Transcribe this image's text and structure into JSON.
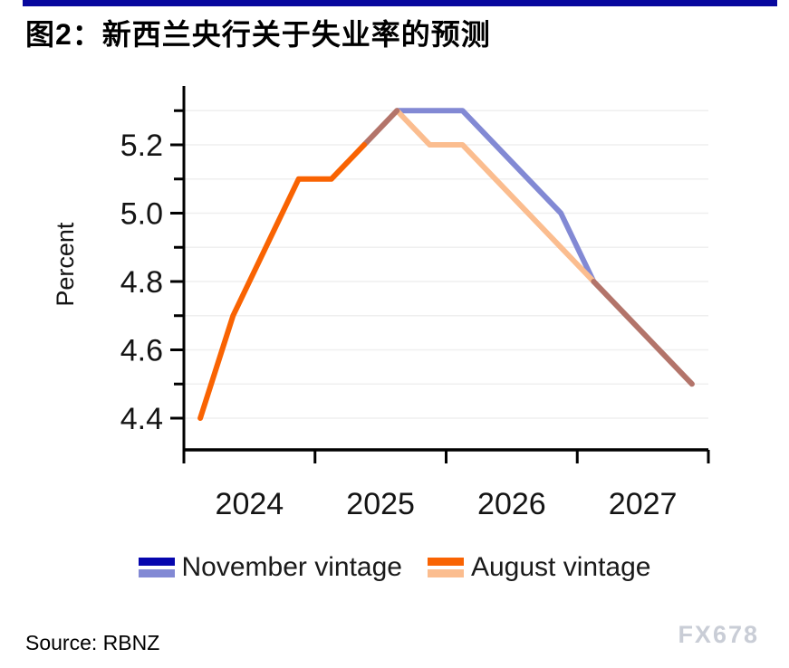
{
  "page": {
    "title": "图2：新西兰央行关于失业率的预测",
    "source": "Source: RBNZ",
    "watermark": "FX678",
    "accent_bar_color": "#08089E"
  },
  "chart_data": {
    "type": "line",
    "title": "图2：新西兰央行关于失业率的预测",
    "xlabel": "",
    "ylabel": "Percent",
    "x_quarters": [
      "2024Q1",
      "2024Q2",
      "2024Q3",
      "2024Q4",
      "2025Q1",
      "2025Q2",
      "2025Q3",
      "2025Q4",
      "2026Q1",
      "2026Q2",
      "2026Q3",
      "2026Q4",
      "2027Q1",
      "2027Q2",
      "2027Q3",
      "2027Q4"
    ],
    "x_tick_labels": [
      "2024",
      "2025",
      "2026",
      "2027"
    ],
    "y_axis": {
      "tick_min": 4.4,
      "tick_max": 5.3,
      "tick_step": 0.1,
      "labeled_ticks": [
        "5.2",
        "5.0",
        "4.8",
        "4.6",
        "4.4"
      ],
      "grid": true
    },
    "ylim": [
      4.33,
      5.37
    ],
    "legend_position": "bottom",
    "series": [
      {
        "name": "November vintage",
        "color_actual": "#0606AE",
        "color_forecast": "#8289D4",
        "values": [
          null,
          null,
          null,
          null,
          null,
          5.2,
          5.3,
          5.3,
          5.3,
          5.2,
          5.1,
          5.0,
          4.8,
          4.7,
          4.6,
          4.5
        ]
      },
      {
        "name": "August vintage",
        "color_actual": "#F96302",
        "color_forecast": "#FBBD8F",
        "actual_through": "2025Q2",
        "values": [
          4.4,
          4.7,
          4.9,
          5.1,
          5.1,
          5.2,
          5.3,
          5.2,
          5.2,
          5.1,
          5.0,
          4.9,
          4.8,
          4.7,
          4.6,
          4.5
        ]
      }
    ],
    "overlap_color": "#B3746A"
  }
}
